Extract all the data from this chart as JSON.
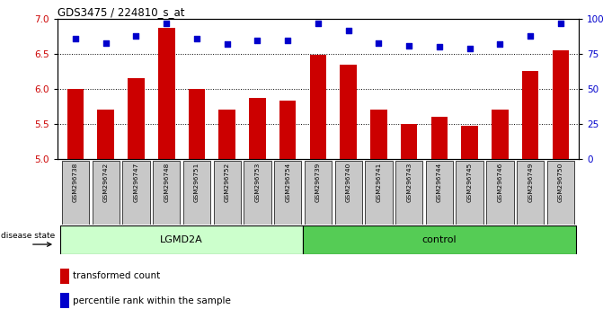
{
  "title": "GDS3475 / 224810_s_at",
  "samples": [
    "GSM296738",
    "GSM296742",
    "GSM296747",
    "GSM296748",
    "GSM296751",
    "GSM296752",
    "GSM296753",
    "GSM296754",
    "GSM296739",
    "GSM296740",
    "GSM296741",
    "GSM296743",
    "GSM296744",
    "GSM296745",
    "GSM296746",
    "GSM296749",
    "GSM296750"
  ],
  "bar_values": [
    6.0,
    5.7,
    6.15,
    6.88,
    6.0,
    5.7,
    5.87,
    5.84,
    6.49,
    6.35,
    5.7,
    5.5,
    5.6,
    5.48,
    5.7,
    6.26,
    6.55
  ],
  "percentile_values": [
    86,
    83,
    88,
    97,
    86,
    82,
    85,
    85,
    97,
    92,
    83,
    81,
    80,
    79,
    82,
    88,
    97
  ],
  "ylim_left": [
    5.0,
    7.0
  ],
  "ylim_right": [
    0,
    100
  ],
  "yticks_left": [
    5.0,
    5.5,
    6.0,
    6.5,
    7.0
  ],
  "yticks_right": [
    0,
    25,
    50,
    75,
    100
  ],
  "ytick_labels_right": [
    "0",
    "25",
    "50",
    "75",
    "100%"
  ],
  "dotted_lines": [
    5.5,
    6.0,
    6.5
  ],
  "bar_color": "#cc0000",
  "percentile_color": "#0000cc",
  "group1_label": "LGMD2A",
  "group2_label": "control",
  "group1_color": "#ccffcc",
  "group2_color": "#55cc55",
  "group1_count": 8,
  "group2_count": 9,
  "disease_state_label": "disease state",
  "legend_bar_label": "transformed count",
  "legend_pct_label": "percentile rank within the sample",
  "tick_label_bg": "#c8c8c8",
  "ylabel_left_color": "#cc0000",
  "ylabel_right_color": "#0000cc"
}
